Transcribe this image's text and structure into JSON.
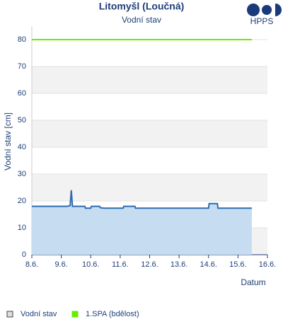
{
  "chart_data": {
    "type": "line",
    "title": "Litomyšl (Loučná)",
    "subtitle": "Vodní stav",
    "logo": "HPPS",
    "y_label": "Vodní stav [cm]",
    "x_label": "Datum",
    "xlim": [
      8,
      16
    ],
    "xticks": [
      {
        "value": 8,
        "label": "8.6."
      },
      {
        "value": 9,
        "label": "9.6."
      },
      {
        "value": 10,
        "label": "10.6."
      },
      {
        "value": 11,
        "label": "11.6."
      },
      {
        "value": 12,
        "label": "12.6."
      },
      {
        "value": 13,
        "label": "13.6."
      },
      {
        "value": 14,
        "label": "14.6."
      },
      {
        "value": 15,
        "label": "15.6."
      },
      {
        "value": 16,
        "label": "16.6."
      }
    ],
    "ylim": [
      0,
      85
    ],
    "yticks": [
      0,
      10,
      20,
      30,
      40,
      50,
      60,
      70,
      80
    ],
    "grid": true,
    "series": [
      {
        "name": "Vodní stav",
        "color": "#2f6db0",
        "fill": "#c6dcf1",
        "x": [
          8,
          9.2,
          9.3,
          9.34,
          9.38,
          9.5,
          9.8,
          9.82,
          10.0,
          10.02,
          10.3,
          10.32,
          10.45,
          10.6,
          10.62,
          11.1,
          11.12,
          11.5,
          11.52,
          12.0,
          12.9,
          14.0,
          14.02,
          14.3,
          14.32,
          15.2,
          15.22,
          15.47
        ],
        "values": [
          18,
          18,
          18.3,
          24,
          18,
          18,
          18,
          17.3,
          17.3,
          18,
          18,
          17.5,
          17.3,
          17.3,
          17.3,
          17.3,
          18,
          18,
          17.3,
          17.3,
          17.3,
          17.3,
          19,
          19,
          17.3,
          17.3,
          17.3,
          17.3
        ]
      },
      {
        "name": "1.SPA (bdělost)",
        "color": "#66ee00",
        "x": [
          8,
          15.47
        ],
        "values": [
          80,
          80
        ]
      }
    ]
  }
}
